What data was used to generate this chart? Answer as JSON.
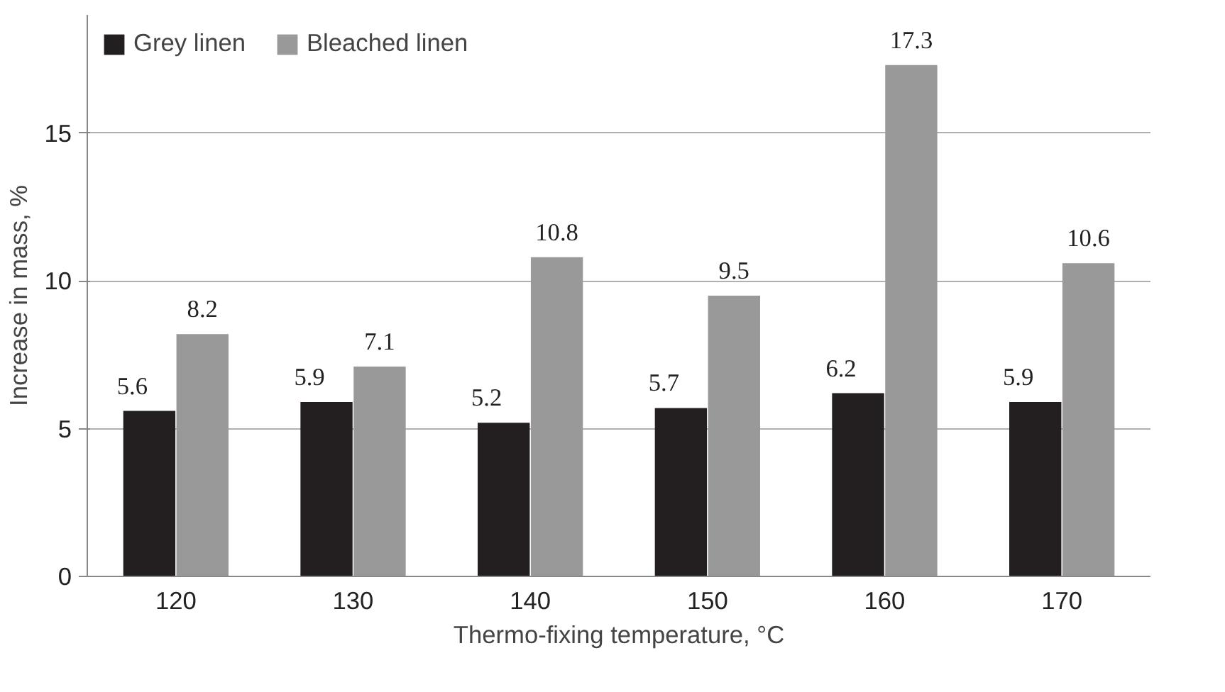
{
  "chart_data": {
    "type": "bar",
    "xlabel": "Thermo-fixing temperature, °C",
    "ylabel": "Increase in mass, %",
    "categories": [
      "120",
      "130",
      "140",
      "150",
      "160",
      "170"
    ],
    "series": [
      {
        "name": "Grey linen",
        "color": "#231f20",
        "values": [
          5.6,
          5.9,
          5.2,
          5.7,
          6.2,
          5.9
        ]
      },
      {
        "name": "Bleached linen",
        "color": "#999999",
        "values": [
          8.2,
          7.1,
          10.8,
          9.5,
          17.3,
          10.6
        ]
      }
    ],
    "ylim": [
      0,
      19
    ],
    "yticks": [
      0,
      5,
      10,
      15
    ],
    "grid": "y",
    "legend": "top",
    "data_labels": true
  }
}
